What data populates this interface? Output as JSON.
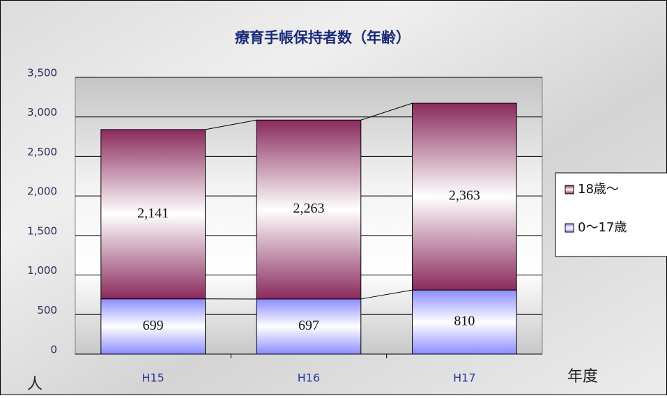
{
  "chart_data": {
    "type": "stacked_bar",
    "title": "療育手帳保持者数（年齢）",
    "y_axis_label": "人",
    "x_axis_label": "年度",
    "categories": [
      "H15",
      "H16",
      "H17"
    ],
    "series": [
      {
        "name": "0～17歳",
        "color": "#8c8cff",
        "values": [
          699,
          697,
          810
        ],
        "value_labels": [
          "699",
          "697",
          "810"
        ]
      },
      {
        "name": "18歳～",
        "color": "#8a2a5c",
        "values": [
          2141,
          2263,
          2363
        ],
        "value_labels": [
          "2,141",
          "2,263",
          "2,363"
        ]
      }
    ],
    "ylim": [
      0,
      3500
    ],
    "yticks": [
      0,
      500,
      {
        "value": 1000,
        "label": "1,000"
      },
      {
        "value": 1500,
        "label": "1,500"
      },
      {
        "value": 2000,
        "label": "2,000"
      },
      {
        "value": 2500,
        "label": "2,500"
      },
      {
        "value": 3000,
        "label": "3,000"
      },
      {
        "value": 3500,
        "label": "3,500"
      }
    ],
    "grid": true,
    "legend": "right"
  }
}
